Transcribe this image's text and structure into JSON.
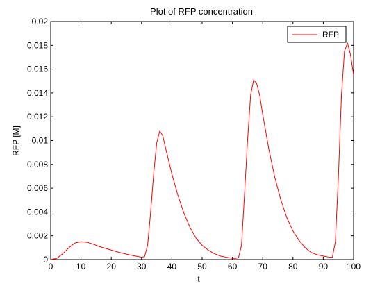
{
  "chart_data": {
    "type": "line",
    "title": "Plot of RFP concentration",
    "xlabel": "t",
    "ylabel": "RFP [M]",
    "xlim": [
      0,
      100
    ],
    "ylim": [
      0,
      0.02
    ],
    "xticks": [
      0,
      10,
      20,
      30,
      40,
      50,
      60,
      70,
      80,
      90,
      100
    ],
    "xtick_labels": [
      "0",
      "10",
      "20",
      "30",
      "40",
      "50",
      "60",
      "70",
      "80",
      "90",
      "100"
    ],
    "yticks": [
      0,
      0.002,
      0.004,
      0.006,
      0.008,
      0.01,
      0.012,
      0.014,
      0.016,
      0.018,
      0.02
    ],
    "ytick_labels": [
      "0",
      "0.002",
      "0.004",
      "0.006",
      "0.008",
      "0.01",
      "0.012",
      "0.014",
      "0.016",
      "0.018",
      "0.02"
    ],
    "grid": false,
    "legend": {
      "position": "top-right",
      "entries": [
        "RFP"
      ]
    },
    "series": [
      {
        "name": "RFP",
        "color": "#ff0000",
        "x": [
          0,
          2,
          4,
          6,
          8,
          10,
          12,
          14,
          16,
          18,
          20,
          22,
          24,
          26,
          28,
          30,
          31,
          32,
          33,
          34,
          35,
          36,
          37,
          38,
          40,
          42,
          44,
          46,
          48,
          50,
          52,
          54,
          56,
          58,
          60,
          61,
          62,
          63,
          64,
          65,
          66,
          67,
          68,
          69,
          70,
          72,
          74,
          76,
          78,
          80,
          82,
          84,
          86,
          88,
          90,
          92,
          93,
          94,
          95,
          96,
          97,
          98,
          99,
          100
        ],
        "y": [
          0.0,
          0.0001,
          0.0005,
          0.001,
          0.0014,
          0.0015,
          0.00145,
          0.0013,
          0.0011,
          0.00095,
          0.0008,
          0.00065,
          0.00052,
          0.0004,
          0.0003,
          0.0002,
          0.00025,
          0.0012,
          0.004,
          0.0072,
          0.0098,
          0.0108,
          0.0104,
          0.0093,
          0.0072,
          0.0054,
          0.0039,
          0.0027,
          0.0018,
          0.0012,
          0.0008,
          0.0005,
          0.0003,
          0.0002,
          0.0001,
          0.0001,
          0.00015,
          0.0012,
          0.0055,
          0.01,
          0.0138,
          0.0151,
          0.0148,
          0.0138,
          0.0122,
          0.0093,
          0.0069,
          0.005,
          0.0035,
          0.0024,
          0.0016,
          0.001,
          0.0006,
          0.0004,
          0.0003,
          0.0002,
          0.0002,
          0.0015,
          0.007,
          0.0138,
          0.0175,
          0.0182,
          0.0172,
          0.0155
        ]
      }
    ]
  }
}
